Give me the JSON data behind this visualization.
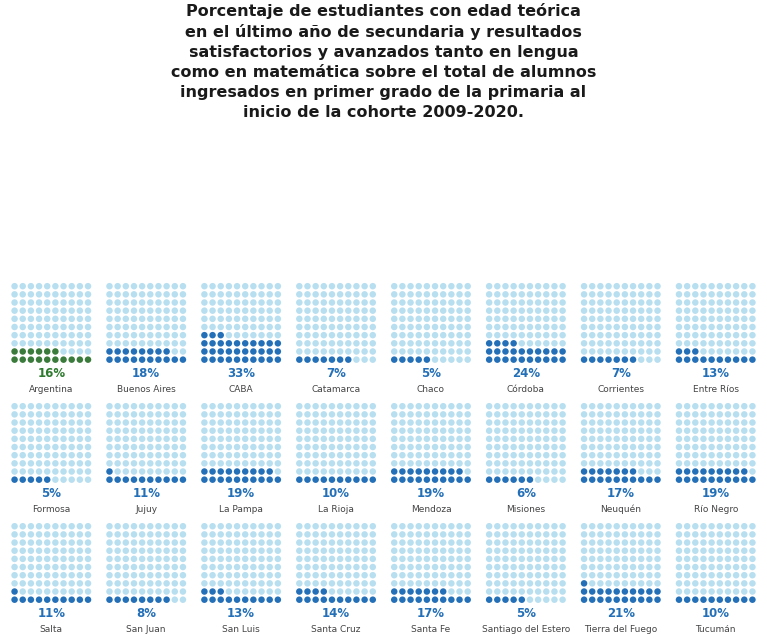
{
  "title": "Porcentaje de estudiantes con edad teórica\nen el último año de secundaria y resultados\nsatisfactorios y avanzados tanto en lengua\ncomo en matemática sobre el total de alumnos\ningresados en primer grado de la primaria al\ninicio de la cohorte 2009-2020.",
  "background_color": "#ffffff",
  "provinces": [
    {
      "name": "Argentina",
      "pct": 16,
      "highlight_color": "#3a7a3a",
      "text_color": "#2e7a2e"
    },
    {
      "name": "Buenos Aires",
      "pct": 18,
      "highlight_color": "#2470b8",
      "text_color": "#2470b8"
    },
    {
      "name": "CABA",
      "pct": 33,
      "highlight_color": "#2470b8",
      "text_color": "#2470b8"
    },
    {
      "name": "Catamarca",
      "pct": 7,
      "highlight_color": "#2470b8",
      "text_color": "#2470b8"
    },
    {
      "name": "Chaco",
      "pct": 5,
      "highlight_color": "#2470b8",
      "text_color": "#2470b8"
    },
    {
      "name": "Córdoba",
      "pct": 24,
      "highlight_color": "#2470b8",
      "text_color": "#2470b8"
    },
    {
      "name": "Corrientes",
      "pct": 7,
      "highlight_color": "#2470b8",
      "text_color": "#2470b8"
    },
    {
      "name": "Entre Ríos",
      "pct": 13,
      "highlight_color": "#2470b8",
      "text_color": "#2470b8"
    },
    {
      "name": "Formosa",
      "pct": 5,
      "highlight_color": "#2470b8",
      "text_color": "#2470b8"
    },
    {
      "name": "Jujuy",
      "pct": 11,
      "highlight_color": "#2470b8",
      "text_color": "#2470b8"
    },
    {
      "name": "La Pampa",
      "pct": 19,
      "highlight_color": "#2470b8",
      "text_color": "#2470b8"
    },
    {
      "name": "La Rioja",
      "pct": 10,
      "highlight_color": "#2470b8",
      "text_color": "#2470b8"
    },
    {
      "name": "Mendoza",
      "pct": 19,
      "highlight_color": "#2470b8",
      "text_color": "#2470b8"
    },
    {
      "name": "Misiones",
      "pct": 6,
      "highlight_color": "#2470b8",
      "text_color": "#2470b8"
    },
    {
      "name": "Neuquén",
      "pct": 17,
      "highlight_color": "#2470b8",
      "text_color": "#2470b8"
    },
    {
      "name": "Río Negro",
      "pct": 19,
      "highlight_color": "#2470b8",
      "text_color": "#2470b8"
    },
    {
      "name": "Salta",
      "pct": 11,
      "highlight_color": "#2470b8",
      "text_color": "#2470b8"
    },
    {
      "name": "San Juan",
      "pct": 8,
      "highlight_color": "#2470b8",
      "text_color": "#2470b8"
    },
    {
      "name": "San Luis",
      "pct": 13,
      "highlight_color": "#2470b8",
      "text_color": "#2470b8"
    },
    {
      "name": "Santa Cruz",
      "pct": 14,
      "highlight_color": "#2470b8",
      "text_color": "#2470b8"
    },
    {
      "name": "Santa Fe",
      "pct": 17,
      "highlight_color": "#2470b8",
      "text_color": "#2470b8"
    },
    {
      "name": "Santiago del Estero",
      "pct": 5,
      "highlight_color": "#2470b8",
      "text_color": "#2470b8"
    },
    {
      "name": "Tierra del Fuego",
      "pct": 21,
      "highlight_color": "#2470b8",
      "text_color": "#2470b8"
    },
    {
      "name": "Tucumán",
      "pct": 10,
      "highlight_color": "#2470b8",
      "text_color": "#2470b8"
    }
  ],
  "dot_bg_color": "#b8dff0",
  "cols_per_row": 8,
  "grid_cols": 10,
  "grid_rows": 10,
  "title_fontsize": 11.5,
  "pct_fontsize": 8.5,
  "name_fontsize": 6.5
}
